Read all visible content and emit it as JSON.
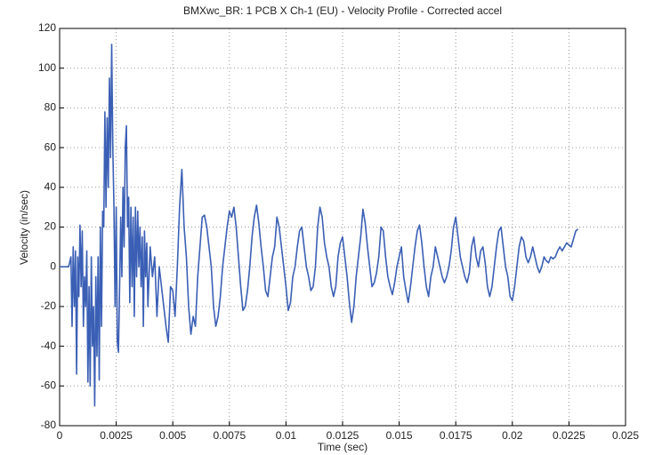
{
  "chart_data": {
    "type": "line",
    "title": "BMXwc_BR: 1 PCB X Ch-1 (EU) - Velocity Profile - Corrected accel",
    "x_label": "Time (sec)",
    "y_label": "Velocity (in/sec)",
    "xlim": [
      0,
      0.025
    ],
    "xticks": [
      0,
      0.0025,
      0.005,
      0.0075,
      0.01,
      0.0125,
      0.015,
      0.0175,
      0.02,
      0.0225,
      0.025
    ],
    "ylim": [
      -80,
      120
    ],
    "yticks": [
      -80,
      -60,
      -40,
      -20,
      0,
      20,
      40,
      60,
      80,
      100,
      120
    ],
    "grid": true,
    "x": [
      0,
      0.0004,
      0.0005,
      0.00055,
      0.0006,
      0.00065,
      0.0007,
      0.00075,
      0.0008,
      0.00085,
      0.0009,
      0.00095,
      0.001,
      0.00105,
      0.0011,
      0.00115,
      0.0012,
      0.00125,
      0.0013,
      0.00135,
      0.0014,
      0.00145,
      0.0015,
      0.00155,
      0.0016,
      0.00165,
      0.0017,
      0.00175,
      0.0018,
      0.00185,
      0.0019,
      0.00195,
      0.002,
      0.00205,
      0.0021,
      0.00215,
      0.0022,
      0.00225,
      0.0023,
      0.00235,
      0.0024,
      0.00245,
      0.0025,
      0.00255,
      0.0026,
      0.00265,
      0.0027,
      0.00275,
      0.0028,
      0.00285,
      0.0029,
      0.00295,
      0.003,
      0.00305,
      0.0031,
      0.00315,
      0.0032,
      0.00325,
      0.0033,
      0.00335,
      0.0034,
      0.00345,
      0.0035,
      0.00355,
      0.0036,
      0.00365,
      0.0037,
      0.00375,
      0.0038,
      0.00385,
      0.0039,
      0.004,
      0.0041,
      0.0042,
      0.0043,
      0.0044,
      0.0045,
      0.0046,
      0.0047,
      0.0048,
      0.0049,
      0.005,
      0.0051,
      0.0052,
      0.0053,
      0.0054,
      0.0055,
      0.0056,
      0.0057,
      0.0058,
      0.0059,
      0.006,
      0.0061,
      0.0062,
      0.0063,
      0.0064,
      0.0065,
      0.0066,
      0.0067,
      0.0068,
      0.0069,
      0.007,
      0.0071,
      0.0072,
      0.0073,
      0.0074,
      0.0075,
      0.0076,
      0.0077,
      0.0078,
      0.0079,
      0.008,
      0.0081,
      0.0082,
      0.0083,
      0.0084,
      0.0085,
      0.0086,
      0.0087,
      0.0088,
      0.0089,
      0.009,
      0.0091,
      0.0092,
      0.0093,
      0.0094,
      0.0095,
      0.0096,
      0.0097,
      0.0098,
      0.0099,
      0.01,
      0.0101,
      0.0102,
      0.0103,
      0.0104,
      0.0105,
      0.0106,
      0.0107,
      0.0108,
      0.0109,
      0.011,
      0.0111,
      0.0112,
      0.0113,
      0.0114,
      0.0115,
      0.0116,
      0.0117,
      0.0118,
      0.0119,
      0.012,
      0.0121,
      0.0122,
      0.0123,
      0.0124,
      0.0125,
      0.0126,
      0.0127,
      0.0128,
      0.0129,
      0.013,
      0.0131,
      0.0132,
      0.0133,
      0.0134,
      0.0135,
      0.0136,
      0.0137,
      0.0138,
      0.0139,
      0.014,
      0.0141,
      0.0142,
      0.0143,
      0.0144,
      0.0145,
      0.0146,
      0.0147,
      0.0148,
      0.0149,
      0.015,
      0.0151,
      0.0152,
      0.0153,
      0.0154,
      0.0155,
      0.0156,
      0.0157,
      0.0158,
      0.0159,
      0.016,
      0.0161,
      0.0162,
      0.0163,
      0.0164,
      0.0165,
      0.0166,
      0.0167,
      0.0168,
      0.0169,
      0.017,
      0.0171,
      0.0172,
      0.0173,
      0.0174,
      0.0175,
      0.0176,
      0.0177,
      0.0178,
      0.0179,
      0.018,
      0.0181,
      0.0182,
      0.0183,
      0.0184,
      0.0185,
      0.0186,
      0.0187,
      0.0188,
      0.0189,
      0.019,
      0.0191,
      0.0192,
      0.0193,
      0.0194,
      0.0195,
      0.0196,
      0.0197,
      0.0198,
      0.0199,
      0.02,
      0.0201,
      0.0202,
      0.0203,
      0.0204,
      0.0205,
      0.0206,
      0.0207,
      0.0208,
      0.0209,
      0.021,
      0.0211,
      0.0212,
      0.0213,
      0.0214,
      0.0215,
      0.0216,
      0.0217,
      0.0218,
      0.0219,
      0.022,
      0.0221,
      0.0222,
      0.0224,
      0.0226,
      0.0228,
      0.0229
    ],
    "series": [
      {
        "color": "#3a5fb5",
        "values": [
          0,
          0,
          5,
          -30,
          10,
          -20,
          8,
          -54,
          5,
          -15,
          21,
          -10,
          18,
          -30,
          -5,
          -20,
          8,
          -58,
          -10,
          -60,
          5,
          -40,
          -20,
          -70,
          -5,
          -45,
          5,
          -57,
          20,
          -30,
          28,
          20,
          78,
          30,
          75,
          40,
          95,
          55,
          112,
          60,
          30,
          -20,
          30,
          -38,
          -43,
          -10,
          25,
          -5,
          40,
          10,
          60,
          71,
          20,
          35,
          -18,
          30,
          -10,
          25,
          -25,
          30,
          -5,
          28,
          0,
          20,
          -10,
          15,
          -30,
          18,
          -5,
          12,
          -20,
          10,
          -5,
          5,
          -25,
          0,
          -10,
          -20,
          -30,
          -38,
          -10,
          -12,
          -25,
          0,
          30,
          49,
          20,
          5,
          -20,
          -34,
          -25,
          -30,
          -5,
          10,
          25,
          26,
          20,
          10,
          0,
          -20,
          -30,
          -25,
          -15,
          0,
          10,
          20,
          28,
          25,
          30,
          20,
          5,
          -10,
          -22,
          -20,
          -12,
          0,
          15,
          25,
          31,
          22,
          10,
          0,
          -12,
          -15,
          -5,
          5,
          10,
          25,
          20,
          10,
          0,
          -10,
          -22,
          -18,
          -5,
          0,
          10,
          18,
          20,
          10,
          0,
          -5,
          -12,
          -10,
          0,
          20,
          30,
          25,
          12,
          5,
          0,
          -10,
          -15,
          -10,
          5,
          12,
          15,
          5,
          -5,
          -18,
          -28,
          -20,
          -5,
          5,
          15,
          29,
          22,
          10,
          0,
          -10,
          -8,
          -3,
          5,
          20,
          18,
          5,
          -5,
          -10,
          -14,
          -8,
          0,
          5,
          10,
          -5,
          -12,
          -18,
          -10,
          0,
          10,
          18,
          21,
          12,
          0,
          -10,
          -15,
          -5,
          0,
          10,
          5,
          0,
          -5,
          -8,
          -5,
          0,
          8,
          20,
          25,
          15,
          5,
          0,
          -5,
          -8,
          -3,
          10,
          15,
          5,
          0,
          8,
          10,
          2,
          -10,
          -15,
          -10,
          0,
          10,
          18,
          20,
          10,
          0,
          -5,
          -15,
          -17,
          -10,
          0,
          10,
          15,
          13,
          5,
          2,
          5,
          10,
          5,
          0,
          -3,
          0,
          5,
          3,
          2,
          5,
          4,
          5,
          8,
          10,
          8,
          12,
          10,
          18,
          19
        ]
      }
    ]
  }
}
